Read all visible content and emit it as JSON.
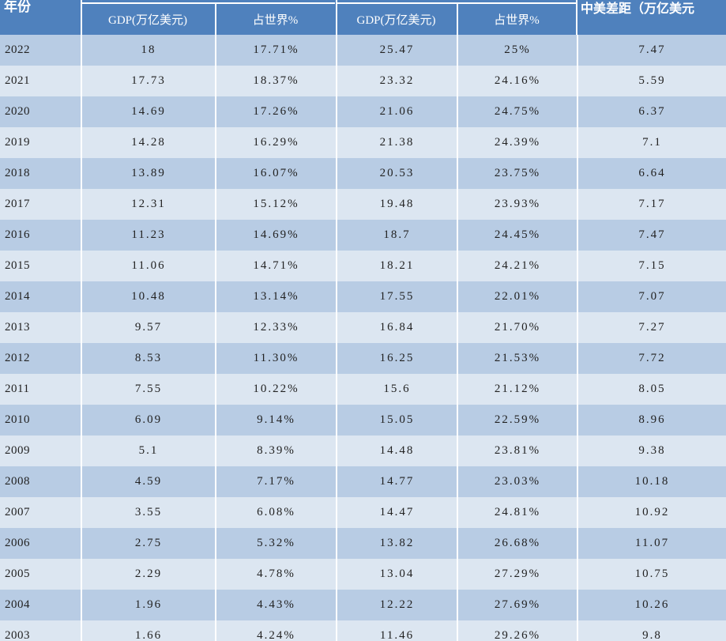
{
  "header": {
    "year_label": "年份",
    "gap_label": "中美差距（万亿美元",
    "columns": [
      "GDP(万亿美元)",
      "占世界%",
      "GDP(万亿美元)",
      "占世界%"
    ]
  },
  "rows": [
    [
      "2022",
      "18",
      "17.71%",
      "25.47",
      "25%",
      "7.47"
    ],
    [
      "2021",
      "17.73",
      "18.37%",
      "23.32",
      "24.16%",
      "5.59"
    ],
    [
      "2020",
      "14.69",
      "17.26%",
      "21.06",
      "24.75%",
      "6.37"
    ],
    [
      "2019",
      "14.28",
      "16.29%",
      "21.38",
      "24.39%",
      "7.1"
    ],
    [
      "2018",
      "13.89",
      "16.07%",
      "20.53",
      "23.75%",
      "6.64"
    ],
    [
      "2017",
      "12.31",
      "15.12%",
      "19.48",
      "23.93%",
      "7.17"
    ],
    [
      "2016",
      "11.23",
      "14.69%",
      "18.7",
      "24.45%",
      "7.47"
    ],
    [
      "2015",
      "11.06",
      "14.71%",
      "18.21",
      "24.21%",
      "7.15"
    ],
    [
      "2014",
      "10.48",
      "13.14%",
      "17.55",
      "22.01%",
      "7.07"
    ],
    [
      "2013",
      "9.57",
      "12.33%",
      "16.84",
      "21.70%",
      "7.27"
    ],
    [
      "2012",
      "8.53",
      "11.30%",
      "16.25",
      "21.53%",
      "7.72"
    ],
    [
      "2011",
      "7.55",
      "10.22%",
      "15.6",
      "21.12%",
      "8.05"
    ],
    [
      "2010",
      "6.09",
      "9.14%",
      "15.05",
      "22.59%",
      "8.96"
    ],
    [
      "2009",
      "5.1",
      "8.39%",
      "14.48",
      "23.81%",
      "9.38"
    ],
    [
      "2008",
      "4.59",
      "7.17%",
      "14.77",
      "23.03%",
      "10.18"
    ],
    [
      "2007",
      "3.55",
      "6.08%",
      "14.47",
      "24.81%",
      "10.92"
    ],
    [
      "2006",
      "2.75",
      "5.32%",
      "13.82",
      "26.68%",
      "11.07"
    ],
    [
      "2005",
      "2.29",
      "4.78%",
      "13.04",
      "27.29%",
      "10.75"
    ],
    [
      "2004",
      "1.96",
      "4.43%",
      "12.22",
      "27.69%",
      "10.26"
    ],
    [
      "2003",
      "1.66",
      "4.24%",
      "11.46",
      "29.26%",
      "9.8"
    ]
  ]
}
